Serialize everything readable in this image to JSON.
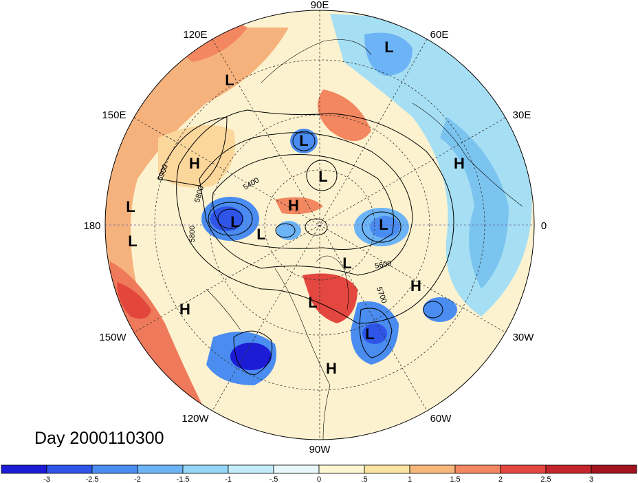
{
  "title": "Day 2000110300",
  "longitude_labels": [
    "90E",
    "120E",
    "60E",
    "150E",
    "30E",
    "180",
    "0",
    "150W",
    "30W",
    "120W",
    "60W",
    "90W"
  ],
  "pressure_systems": [
    "L",
    "L",
    "L",
    "L",
    "L",
    "L",
    "L",
    "L",
    "L",
    "L",
    "L",
    "L",
    "H",
    "H",
    "H",
    "H",
    "H",
    "H"
  ],
  "contour_labels": [
    "5900",
    "5800",
    "5400",
    "5800",
    "5600",
    "5700"
  ],
  "colorbar": {
    "labels": [
      "-3",
      "-2.5",
      "-2",
      "-1.5",
      "-1",
      "-.5",
      "0",
      ".5",
      "1",
      "1.5",
      "2",
      "2.5",
      "3"
    ],
    "colors": [
      "#1c1cd6",
      "#2e54e8",
      "#4a8cf0",
      "#6cb4f5",
      "#93d6f8",
      "#c3ecf9",
      "#e8f7fb",
      "#fdf6d2",
      "#fbe3a2",
      "#f7b77b",
      "#f28760",
      "#e4473f",
      "#c4242c",
      "#a0131f"
    ]
  }
}
